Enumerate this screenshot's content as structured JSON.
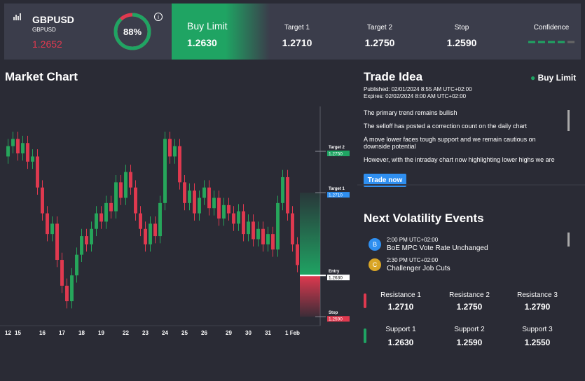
{
  "header": {
    "symbol": "GBPUSD",
    "sub": "GBPUSD",
    "price": "1.2652",
    "score": {
      "value": 88,
      "label": "88%"
    },
    "order_type": "Buy Limit",
    "order_price": "1.2630",
    "columns": [
      {
        "label": "Target 1",
        "value": "1.2710"
      },
      {
        "label": "Target 2",
        "value": "1.2750"
      },
      {
        "label": "Stop",
        "value": "1.2590"
      },
      {
        "label": "Confidence"
      }
    ]
  },
  "chart_data": {
    "type": "candlestick",
    "title": "Market Chart",
    "ylim": [
      1.258,
      1.279
    ],
    "up_color": "#26a65b",
    "down_color": "#e0394f",
    "categories": [
      "12",
      null,
      "15",
      null,
      null,
      null,
      null,
      "16",
      null,
      null,
      null,
      "17",
      null,
      null,
      null,
      "18",
      null,
      null,
      null,
      "19",
      null,
      null,
      null,
      null,
      "22",
      null,
      null,
      null,
      "23",
      null,
      null,
      null,
      "24",
      null,
      null,
      null,
      "25",
      null,
      null,
      null,
      "26",
      null,
      null,
      null,
      null,
      "29",
      null,
      null,
      null,
      "30",
      null,
      null,
      null,
      "31",
      null,
      null,
      null,
      null,
      "1 Feb",
      null
    ],
    "open": [
      1.2745,
      1.2755,
      1.2762,
      1.2748,
      1.2758,
      1.274,
      1.2745,
      1.2715,
      1.269,
      1.267,
      1.268,
      1.2645,
      1.262,
      1.2605,
      1.263,
      1.265,
      1.2668,
      1.266,
      1.2675,
      1.269,
      1.2682,
      1.27,
      1.2692,
      1.272,
      1.2705,
      1.273,
      1.2715,
      1.269,
      1.2675,
      1.266,
      1.268,
      1.2668,
      1.27,
      1.2762,
      1.2745,
      1.2755,
      1.272,
      1.27,
      1.2712,
      1.269,
      1.2705,
      1.2715,
      1.2695,
      1.2705,
      1.2685,
      1.2698,
      1.269,
      1.268,
      1.2692,
      1.267,
      1.2682,
      1.2665,
      1.2675,
      1.266,
      1.267,
      1.2655,
      1.27,
      1.2725,
      1.269,
      1.266
    ],
    "high": [
      1.2762,
      1.2769,
      1.2769,
      1.2765,
      1.2765,
      1.2752,
      1.2752,
      1.2722,
      1.2697,
      1.2687,
      1.2687,
      1.2652,
      1.2627,
      1.2637,
      1.2657,
      1.2675,
      1.2675,
      1.2682,
      1.2697,
      1.2697,
      1.2707,
      1.2707,
      1.2727,
      1.2727,
      1.2737,
      1.2737,
      1.2722,
      1.2697,
      1.2682,
      1.2687,
      1.2687,
      1.2707,
      1.2769,
      1.2769,
      1.2762,
      1.2762,
      1.2727,
      1.2719,
      1.2719,
      1.2712,
      1.2722,
      1.2722,
      1.2712,
      1.2712,
      1.2705,
      1.2705,
      1.2697,
      1.2699,
      1.2699,
      1.2689,
      1.2689,
      1.2682,
      1.2682,
      1.2677,
      1.2677,
      1.2707,
      1.2732,
      1.2732,
      1.2697,
      1.2667
    ],
    "low": [
      1.2738,
      1.2748,
      1.2741,
      1.2741,
      1.2733,
      1.2733,
      1.2708,
      1.2683,
      1.2663,
      1.2663,
      1.2638,
      1.2613,
      1.2598,
      1.2598,
      1.2623,
      1.2643,
      1.2653,
      1.2653,
      1.2668,
      1.2675,
      1.2675,
      1.2685,
      1.2685,
      1.2698,
      1.2698,
      1.2708,
      1.2683,
      1.2668,
      1.2653,
      1.2653,
      1.2661,
      1.2661,
      1.2693,
      1.2738,
      1.2738,
      1.2713,
      1.2693,
      1.2693,
      1.2683,
      1.2683,
      1.2698,
      1.2688,
      1.2688,
      1.2678,
      1.2678,
      1.2683,
      1.2673,
      1.2673,
      1.2663,
      1.2663,
      1.2658,
      1.2658,
      1.2653,
      1.2653,
      1.2648,
      1.2648,
      1.2693,
      1.2683,
      1.2653,
      1.2633
    ],
    "close": [
      1.2755,
      1.2762,
      1.2748,
      1.2758,
      1.274,
      1.2745,
      1.2715,
      1.269,
      1.267,
      1.268,
      1.2645,
      1.262,
      1.2605,
      1.263,
      1.265,
      1.2668,
      1.266,
      1.2675,
      1.269,
      1.2682,
      1.27,
      1.2692,
      1.272,
      1.2705,
      1.273,
      1.2715,
      1.269,
      1.2675,
      1.266,
      1.268,
      1.2668,
      1.27,
      1.2762,
      1.2745,
      1.2755,
      1.272,
      1.27,
      1.2712,
      1.269,
      1.2705,
      1.2715,
      1.2695,
      1.2705,
      1.2685,
      1.2698,
      1.269,
      1.268,
      1.2692,
      1.267,
      1.2682,
      1.2665,
      1.2675,
      1.266,
      1.267,
      1.2655,
      1.27,
      1.2725,
      1.269,
      1.266,
      1.264
    ],
    "levels": [
      {
        "name": "Target 2",
        "value": 1.275,
        "value_label": "1.2750",
        "color": "#1fa463"
      },
      {
        "name": "Target 1",
        "value": 1.271,
        "value_label": "1.2710",
        "color": "#2f8ff0"
      },
      {
        "name": "Entry",
        "value": 1.263,
        "value_label": "1.2630",
        "color": "#ffffff"
      },
      {
        "name": "Stop",
        "value": 1.259,
        "value_label": "1.2590",
        "color": "#e0394f"
      }
    ]
  },
  "trade_idea": {
    "title": "Trade Idea",
    "status": "Buy Limit",
    "published": "Published: 02/01/2024 8:55 AM UTC+02:00",
    "expires": "Expires:  02/02/2024 8:00 AM UTC+02:00",
    "paragraphs": [
      "The primary trend remains bullish",
      "The selloff has posted a correction count on the daily chart",
      "A move lower faces tough support and we remain cautious on downside potential",
      "However, with the intraday chart now highlighting lower highs we are"
    ],
    "button": "Trade now"
  },
  "events": {
    "title": "Next Volatility Events",
    "items": [
      {
        "icon": "B",
        "time": "2:00 PM UTC+02:00",
        "name": "BoE MPC Vote Rate Unchanged"
      },
      {
        "icon": "C",
        "time": "2:30 PM UTC+02:00",
        "name": "Challenger Job Cuts"
      }
    ]
  },
  "levels": {
    "resistance": [
      {
        "label": "Resistance 1",
        "value": "1.2710"
      },
      {
        "label": "Resistance 2",
        "value": "1.2750"
      },
      {
        "label": "Resistance 3",
        "value": "1.2790"
      }
    ],
    "support": [
      {
        "label": "Support 1",
        "value": "1.2630"
      },
      {
        "label": "Support 2",
        "value": "1.2590"
      },
      {
        "label": "Support 3",
        "value": "1.2550"
      }
    ]
  }
}
